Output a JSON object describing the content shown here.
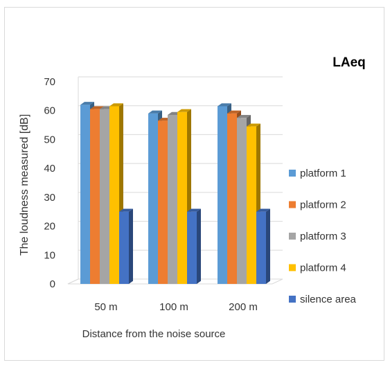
{
  "chart_data": {
    "type": "bar",
    "title": "LAeq",
    "xlabel": "Distance from the noise source",
    "ylabel": "The loudness measured [dB]",
    "categories": [
      "50 m",
      "100 m",
      "200 m"
    ],
    "ylim": [
      0,
      70
    ],
    "yticks": [
      0,
      10,
      20,
      30,
      40,
      50,
      60,
      70
    ],
    "grid": true,
    "legend_position": "right",
    "style": "3d",
    "series": [
      {
        "name": "platform 1",
        "color": "#5b9bd5",
        "values": [
          62,
          59,
          61.5
        ]
      },
      {
        "name": "platform 2",
        "color": "#ed7d31",
        "values": [
          60.5,
          56.5,
          59
        ]
      },
      {
        "name": "platform 3",
        "color": "#a5a5a5",
        "values": [
          60.5,
          58.5,
          57.5
        ]
      },
      {
        "name": "platform 4",
        "color": "#ffc000",
        "values": [
          61.5,
          59.5,
          54.5
        ]
      },
      {
        "name": "silence area",
        "color": "#4472c4",
        "values": [
          25,
          25,
          25
        ]
      }
    ]
  }
}
